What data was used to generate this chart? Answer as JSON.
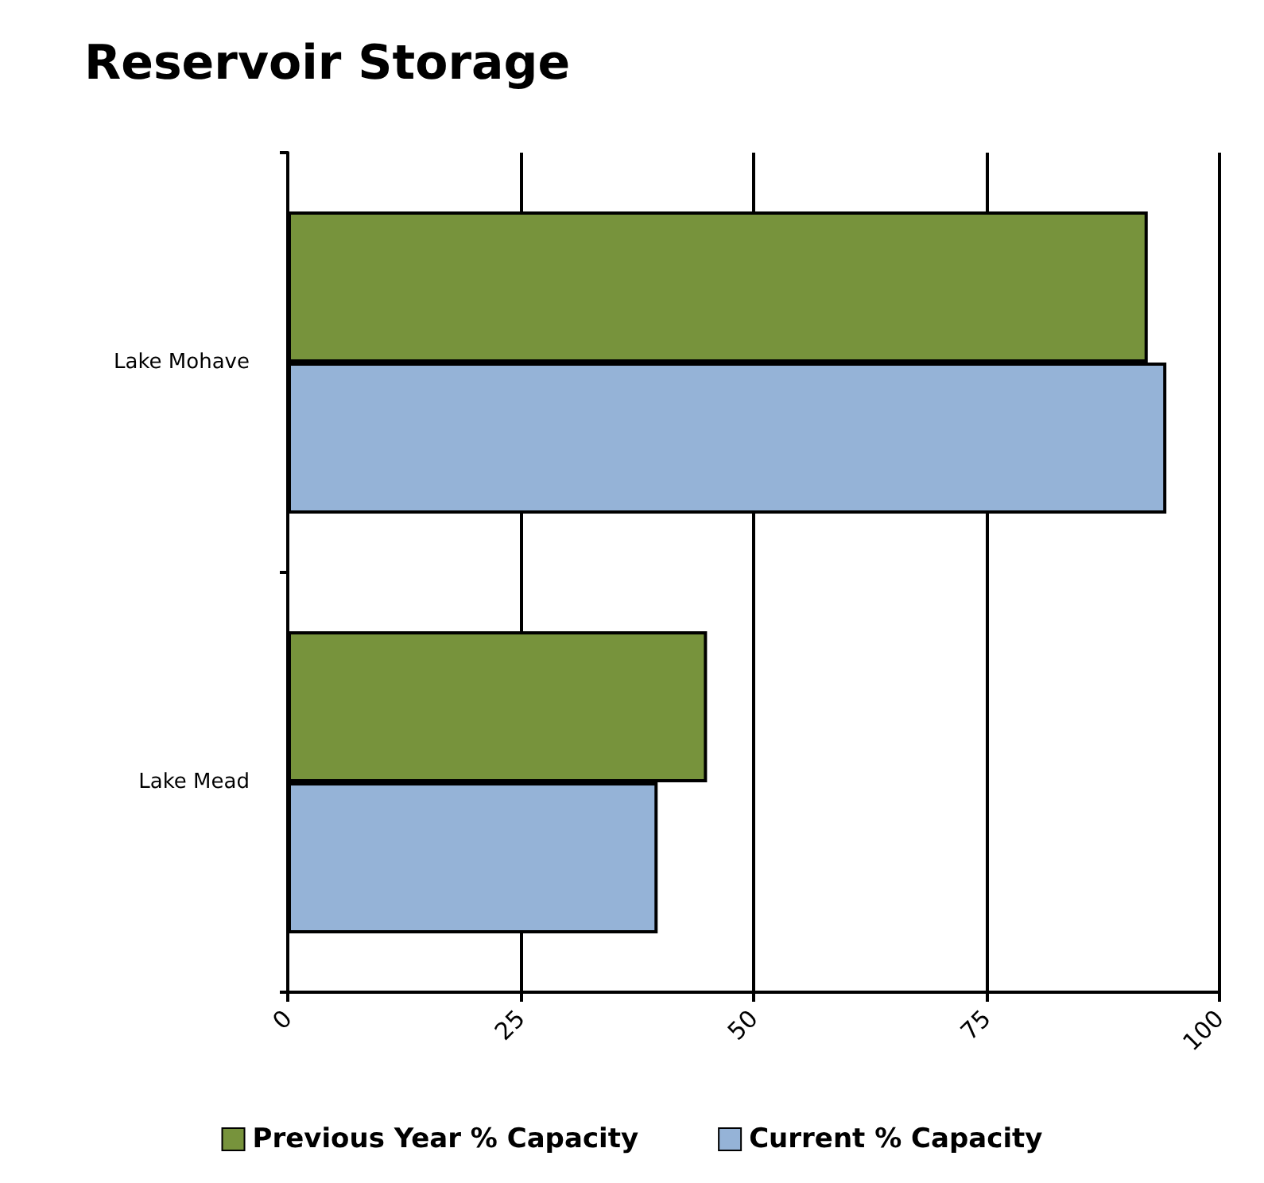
{
  "chart_data": {
    "type": "bar",
    "title": "Reservoir Storage",
    "orientation": "horizontal",
    "categories": [
      "Lake Mohave",
      "Lake Mead"
    ],
    "series": [
      {
        "name": "Previous Year % Capacity",
        "color": "#77933c",
        "values": [
          92.3,
          45
        ]
      },
      {
        "name": "Current % Capacity",
        "color": "#95b3d7",
        "values": [
          94.3,
          39.7
        ]
      }
    ],
    "xlim": [
      0,
      100
    ],
    "xticks": [
      0,
      25,
      50,
      75,
      100
    ],
    "grid": "x",
    "legend": "bottom"
  }
}
